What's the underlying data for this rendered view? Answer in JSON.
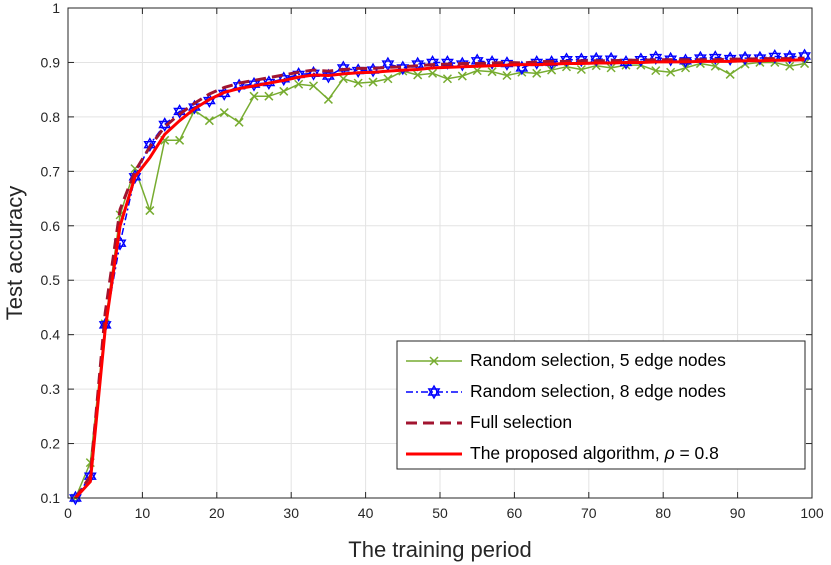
{
  "chart_data": {
    "type": "line",
    "title": "",
    "xlabel": "The training period",
    "ylabel": "Test accuracy",
    "xlim": [
      0,
      100
    ],
    "ylim": [
      0.1,
      1
    ],
    "xticks": [
      0,
      10,
      20,
      30,
      40,
      50,
      60,
      70,
      80,
      90,
      100
    ],
    "yticks": [
      0.1,
      0.2,
      0.3,
      0.4,
      0.5,
      0.6,
      0.7,
      0.8,
      0.9,
      1
    ],
    "xtick_labels": [
      "0",
      "10",
      "20",
      "30",
      "40",
      "50",
      "60",
      "70",
      "80",
      "90",
      "100"
    ],
    "ytick_labels": [
      "0.1",
      "0.2",
      "0.3",
      "0.4",
      "0.5",
      "0.6",
      "0.7",
      "0.8",
      "0.9",
      "1"
    ],
    "grid": true,
    "legend_position": "bottom-right",
    "x": [
      1,
      3,
      5,
      7,
      9,
      11,
      13,
      15,
      17,
      19,
      21,
      23,
      25,
      27,
      29,
      31,
      33,
      35,
      37,
      39,
      41,
      43,
      45,
      47,
      49,
      51,
      53,
      55,
      57,
      59,
      61,
      63,
      65,
      67,
      69,
      71,
      73,
      75,
      77,
      79,
      81,
      83,
      85,
      87,
      89,
      91,
      93,
      95,
      97,
      99
    ],
    "series": [
      {
        "name": "Random selection, 5 edge nodes",
        "legend_prefix": "Random selection, 5 edge nodes",
        "color": "#77AC30",
        "dash": "",
        "marker": "x",
        "width": 1.5,
        "values": [
          0.1,
          0.165,
          0.42,
          0.62,
          0.705,
          0.628,
          0.757,
          0.757,
          0.812,
          0.793,
          0.808,
          0.79,
          0.838,
          0.838,
          0.847,
          0.86,
          0.857,
          0.832,
          0.87,
          0.862,
          0.864,
          0.87,
          0.884,
          0.877,
          0.88,
          0.87,
          0.875,
          0.885,
          0.883,
          0.876,
          0.882,
          0.88,
          0.886,
          0.892,
          0.887,
          0.894,
          0.89,
          0.895,
          0.895,
          0.885,
          0.882,
          0.89,
          0.898,
          0.893,
          0.878,
          0.897,
          0.9,
          0.9,
          0.893,
          0.898
        ]
      },
      {
        "name": "Random selection, 8 edge nodes",
        "legend_prefix": "Random selection, 8 edge nodes",
        "color": "#0000FF",
        "dash": "7,3,2,3",
        "marker": "hexagram",
        "width": 1.5,
        "values": [
          0.1,
          0.14,
          0.418,
          0.568,
          0.69,
          0.749,
          0.786,
          0.81,
          0.818,
          0.83,
          0.843,
          0.857,
          0.86,
          0.863,
          0.87,
          0.878,
          0.88,
          0.875,
          0.89,
          0.885,
          0.886,
          0.897,
          0.89,
          0.897,
          0.9,
          0.9,
          0.897,
          0.903,
          0.9,
          0.898,
          0.89,
          0.9,
          0.9,
          0.905,
          0.905,
          0.906,
          0.906,
          0.9,
          0.905,
          0.909,
          0.906,
          0.903,
          0.908,
          0.909,
          0.907,
          0.908,
          0.908,
          0.911,
          0.91,
          0.912
        ]
      },
      {
        "name": "Full selection",
        "legend_prefix": "Full selection",
        "color": "#A2142F",
        "dash": "11,6",
        "marker": "none",
        "width": 3,
        "values": [
          0.1,
          0.14,
          0.44,
          0.63,
          0.7,
          0.745,
          0.782,
          0.805,
          0.825,
          0.842,
          0.854,
          0.862,
          0.867,
          0.872,
          0.877,
          0.882,
          0.886,
          0.884,
          0.887,
          0.889,
          0.889,
          0.891,
          0.892,
          0.894,
          0.896,
          0.897,
          0.898,
          0.898,
          0.899,
          0.9,
          0.899,
          0.901,
          0.902,
          0.902,
          0.903,
          0.903,
          0.903,
          0.904,
          0.904,
          0.905,
          0.905,
          0.905,
          0.905,
          0.905,
          0.906,
          0.906,
          0.907,
          0.907,
          0.907,
          0.908
        ]
      },
      {
        "name": "The proposed algorithm, ρ = 0.8",
        "legend_prefix": "The proposed algorithm, ",
        "legend_symbol": "ρ",
        "legend_suffix": " = 0.8",
        "color": "#FF0000",
        "dash": "",
        "marker": "none",
        "width": 3,
        "values": [
          0.1,
          0.13,
          0.41,
          0.6,
          0.69,
          0.725,
          0.768,
          0.793,
          0.815,
          0.832,
          0.845,
          0.852,
          0.857,
          0.862,
          0.867,
          0.873,
          0.877,
          0.876,
          0.879,
          0.881,
          0.882,
          0.884,
          0.886,
          0.887,
          0.89,
          0.891,
          0.892,
          0.893,
          0.894,
          0.895,
          0.896,
          0.896,
          0.897,
          0.898,
          0.898,
          0.899,
          0.899,
          0.9,
          0.9,
          0.901,
          0.901,
          0.901,
          0.902,
          0.902,
          0.902,
          0.903,
          0.903,
          0.904,
          0.904,
          0.905
        ]
      }
    ]
  }
}
